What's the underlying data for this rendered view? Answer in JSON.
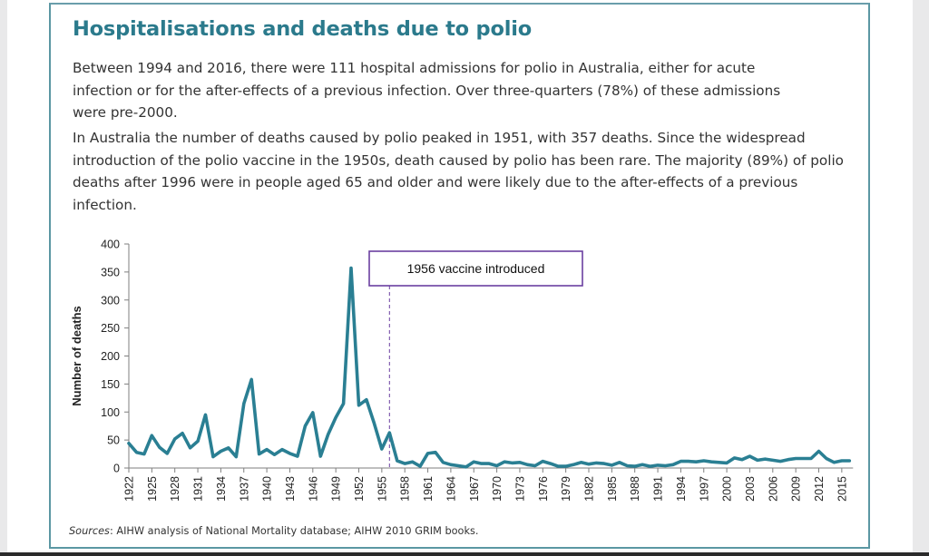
{
  "title": "Hospitalisations and deaths due to polio",
  "paragraphs": [
    "Between 1994 and 2016, there were 111 hospital admissions for polio in Australia, either for acute infection or for the after-effects of a previous infection. Over three-quarters (78%) of these admissions were pre-2000.",
    "In Australia the number of deaths caused by polio peaked in 1951, with 357 deaths. Since the widespread introduction of the polio vaccine in the 1950s, death caused by polio has been rare. The majority (89%) of polio deaths after 1996 were in people aged 65 and older and were likely due to the after-effects of a previous infection."
  ],
  "source": {
    "label": "Sources",
    "text": ": AIHW analysis of National Mortality database; AIHW 2010 GRIM books."
  },
  "colors": {
    "line": "#2a7f93",
    "title": "#2b7a8c",
    "annotation_border": "#6a3fa0",
    "frame": "#5b97a3"
  },
  "chart_data": {
    "type": "line",
    "title": "",
    "xlabel": "",
    "ylabel": "Number of deaths",
    "ylim": [
      0,
      400
    ],
    "yticks": [
      0,
      50,
      100,
      150,
      200,
      250,
      300,
      350,
      400
    ],
    "xlim": [
      1922,
      2016
    ],
    "xticks": [
      1922,
      1925,
      1928,
      1931,
      1934,
      1937,
      1940,
      1943,
      1946,
      1949,
      1952,
      1955,
      1958,
      1961,
      1964,
      1967,
      1970,
      1973,
      1976,
      1979,
      1982,
      1985,
      1988,
      1991,
      1994,
      1997,
      2000,
      2003,
      2006,
      2009,
      2012,
      2015
    ],
    "grid": false,
    "annotation": {
      "x": 1956,
      "text": "1956 vaccine introduced"
    },
    "series": [
      {
        "name": "Deaths",
        "x": [
          1922,
          1923,
          1924,
          1925,
          1926,
          1927,
          1928,
          1929,
          1930,
          1931,
          1932,
          1933,
          1934,
          1935,
          1936,
          1937,
          1938,
          1939,
          1940,
          1941,
          1942,
          1943,
          1944,
          1945,
          1946,
          1947,
          1948,
          1949,
          1950,
          1951,
          1952,
          1953,
          1954,
          1955,
          1956,
          1957,
          1958,
          1959,
          1960,
          1961,
          1962,
          1963,
          1964,
          1965,
          1966,
          1967,
          1968,
          1969,
          1970,
          1971,
          1972,
          1973,
          1974,
          1975,
          1976,
          1977,
          1978,
          1979,
          1980,
          1981,
          1982,
          1983,
          1984,
          1985,
          1986,
          1987,
          1988,
          1989,
          1990,
          1991,
          1992,
          1993,
          1994,
          1995,
          1996,
          1997,
          1998,
          1999,
          2000,
          2001,
          2002,
          2003,
          2004,
          2005,
          2006,
          2007,
          2008,
          2009,
          2010,
          2011,
          2012,
          2013,
          2014,
          2015,
          2016
        ],
        "values": [
          44,
          28,
          25,
          58,
          37,
          26,
          52,
          62,
          36,
          48,
          95,
          20,
          30,
          36,
          20,
          115,
          158,
          25,
          33,
          24,
          33,
          26,
          21,
          75,
          99,
          21,
          60,
          90,
          115,
          357,
          112,
          122,
          80,
          34,
          63,
          13,
          8,
          11,
          3,
          26,
          28,
          10,
          6,
          4,
          2,
          11,
          8,
          8,
          4,
          11,
          9,
          10,
          6,
          4,
          12,
          8,
          3,
          3,
          6,
          10,
          7,
          9,
          8,
          5,
          10,
          4,
          3,
          6,
          3,
          5,
          4,
          6,
          12,
          12,
          11,
          13,
          11,
          10,
          9,
          18,
          15,
          21,
          14,
          16,
          14,
          12,
          15,
          17,
          17,
          17,
          30,
          17,
          10,
          13,
          13
        ]
      }
    ]
  }
}
